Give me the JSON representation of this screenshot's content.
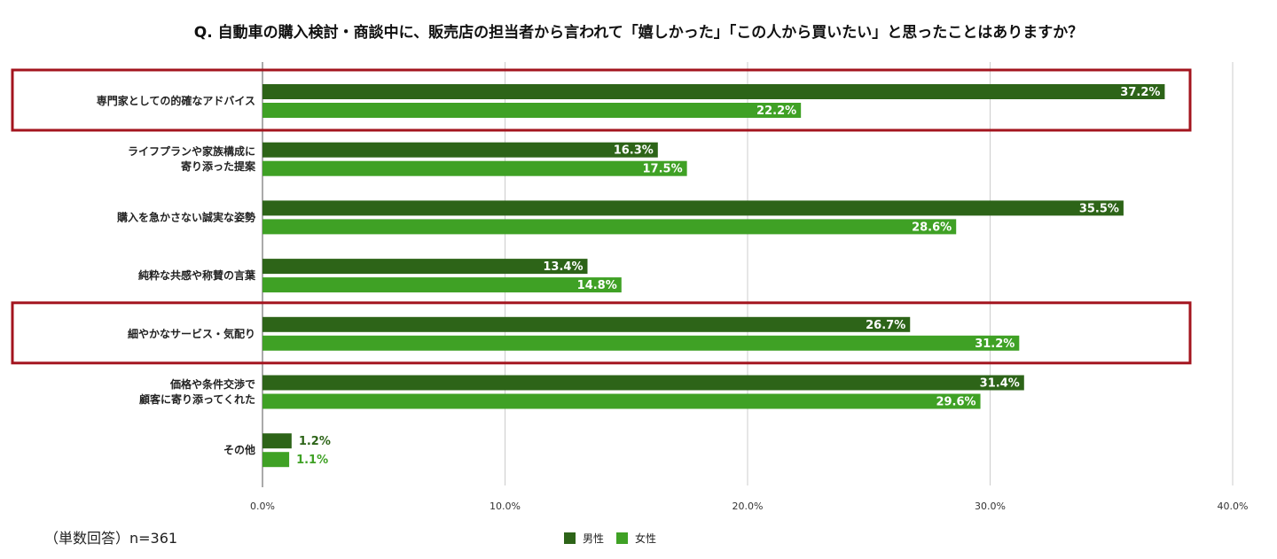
{
  "chart_data": {
    "type": "bar",
    "orientation": "horizontal",
    "title": "Q. 自動車の購入検討・商談中に、販売店の担当者から言われて「嬉しかった」「この人から買いたい」と思ったことはありますか？",
    "categories": [
      [
        "専門家としての的確なアドバイス"
      ],
      [
        "ライフプランや家族構成に",
        "寄り添った提案"
      ],
      [
        "購入を急かさない誠実な姿勢"
      ],
      [
        "純粋な共感や称賛の言葉"
      ],
      [
        "細やかなサービス・気配り"
      ],
      [
        "価格や条件交渉で",
        "顧客に寄り添ってくれた"
      ],
      [
        "その他"
      ]
    ],
    "series": [
      {
        "name": "男性",
        "color": "#2d6418",
        "values": [
          37.2,
          16.3,
          35.5,
          13.4,
          26.7,
          31.4,
          1.2
        ]
      },
      {
        "name": "女性",
        "color": "#3fa125",
        "values": [
          22.2,
          17.5,
          28.6,
          14.8,
          31.2,
          29.6,
          1.1
        ]
      }
    ],
    "xlim": [
      0,
      40
    ],
    "xticks": [
      "0.0%",
      "10.0%",
      "20.0%",
      "30.0%",
      "40.0%"
    ],
    "highlighted": [
      0,
      4
    ],
    "highlight_color": "#a3141e",
    "legend": "bottom",
    "grid": true
  },
  "note": "（単数回答）n=361"
}
